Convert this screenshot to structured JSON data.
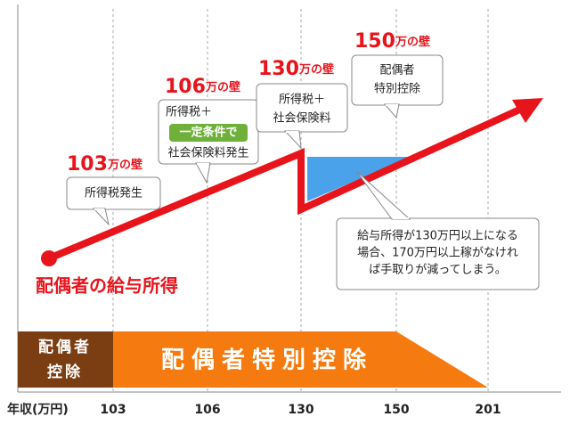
{
  "axis": {
    "label": "年収(万円)",
    "ticks": [
      "103",
      "106",
      "130",
      "150",
      "201"
    ]
  },
  "walls": [
    {
      "number": "103",
      "suffix": "万の壁"
    },
    {
      "number": "106",
      "suffix": "万の壁"
    },
    {
      "number": "130",
      "suffix": "万の壁"
    },
    {
      "number": "150",
      "suffix": "万の壁"
    }
  ],
  "callouts": [
    {
      "lines": [
        "所得税発生"
      ]
    },
    {
      "lines": [
        "所得税＋",
        "社会保険料発生"
      ],
      "badge": "一定条件で"
    },
    {
      "lines": [
        "所得税＋",
        "社会保険料"
      ]
    },
    {
      "lines": [
        "配偶者",
        "特別控除"
      ]
    },
    {
      "lines": [
        "給与所得が130万円以上になる",
        "場合、170万円以上稼がなけれ",
        "ば手取りが減ってしまう。"
      ]
    }
  ],
  "line_label": "配偶者の給与所得",
  "bars": {
    "spousal": [
      "配偶者",
      "控除"
    ],
    "special": "配偶者特別控除"
  }
}
